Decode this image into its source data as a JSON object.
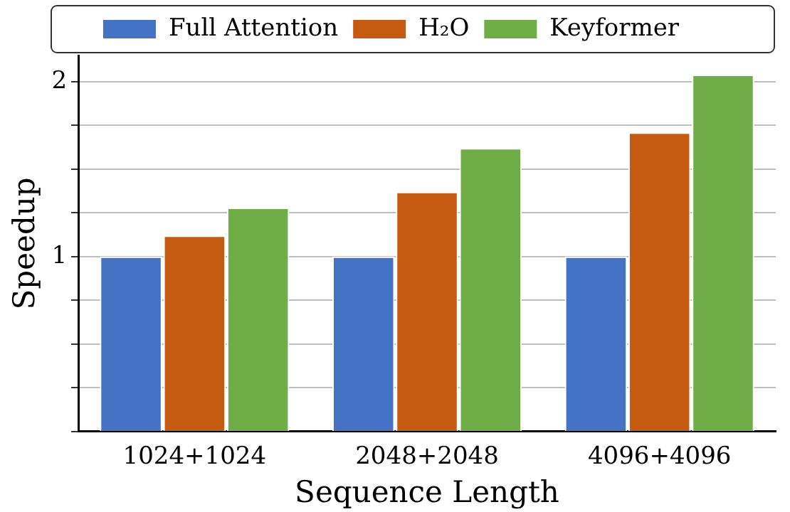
{
  "chart_data": {
    "type": "bar",
    "xlabel": "Sequence Length",
    "ylabel": "Speedup",
    "categories": [
      "1024+1024",
      "2048+2048",
      "4096+4096"
    ],
    "series": [
      {
        "name": "Full Attention",
        "color": "#4472c4",
        "values": [
          1,
          1,
          1
        ]
      },
      {
        "name": "H₂O",
        "color": "#c55a11",
        "values": [
          1.12,
          1.37,
          1.71
        ]
      },
      {
        "name": "Keyformer",
        "color": "#70ad47",
        "values": [
          1.28,
          1.62,
          2.04
        ]
      }
    ],
    "ylim": [
      0,
      2.15
    ],
    "yticks": [
      {
        "value": 0,
        "label": null
      },
      {
        "value": 0.25,
        "label": null
      },
      {
        "value": 0.5,
        "label": null
      },
      {
        "value": 0.75,
        "label": null
      },
      1,
      {
        "value": 1.25,
        "label": null
      },
      {
        "value": 1.5,
        "label": null
      },
      {
        "value": 1.75,
        "label": null
      },
      2
    ],
    "grid": "y",
    "legend": "top"
  }
}
